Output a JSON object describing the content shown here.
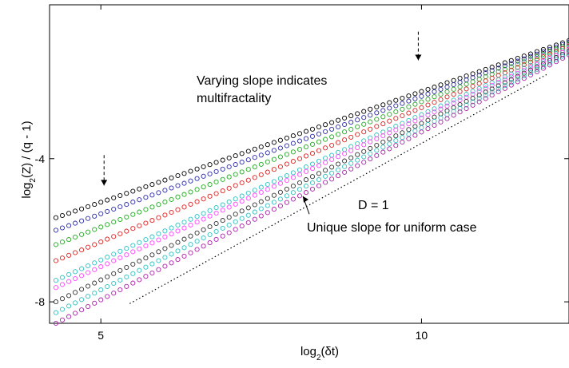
{
  "chart_data": {
    "type": "scatter",
    "xlabel": "log2(δt)",
    "ylabel": "log2(Z) / (q - 1)",
    "xlim": [
      4.2,
      12.3
    ],
    "ylim": [
      -8.6,
      0.3
    ],
    "xticks": [
      5,
      10
    ],
    "yticks": [
      -4,
      -8
    ],
    "grid": false,
    "legend": "none",
    "x_start": 4.3,
    "x_step": 0.1,
    "x_end": 12.3,
    "series": [
      {
        "color": "#000000",
        "points": [
          [
            4.3,
            -5.65
          ],
          [
            12.3,
            -0.7
          ]
        ]
      },
      {
        "color": "#2b2baa",
        "points": [
          [
            4.3,
            -6.0
          ],
          [
            12.3,
            -0.75
          ]
        ]
      },
      {
        "color": "#22aa22",
        "points": [
          [
            4.3,
            -6.4
          ],
          [
            12.3,
            -0.8
          ]
        ]
      },
      {
        "color": "#dd2222",
        "points": [
          [
            4.3,
            -6.85
          ],
          [
            12.3,
            -0.85
          ]
        ]
      },
      {
        "color": "#30c0c0",
        "points": [
          [
            4.3,
            -7.4
          ],
          [
            12.3,
            -0.9
          ]
        ]
      },
      {
        "color": "#ff44ff",
        "points": [
          [
            4.3,
            -7.6
          ],
          [
            12.3,
            -0.95
          ]
        ]
      },
      {
        "color": "#333333",
        "points": [
          [
            4.3,
            -8.0
          ],
          [
            12.3,
            -1.0
          ]
        ]
      },
      {
        "color": "#30c0c0",
        "points": [
          [
            4.3,
            -8.3
          ],
          [
            12.3,
            -1.05
          ]
        ]
      },
      {
        "color": "#aa22aa",
        "points": [
          [
            4.3,
            -8.6
          ],
          [
            12.3,
            -1.1
          ]
        ]
      }
    ],
    "reference_line": {
      "label": "D = 1",
      "points": [
        [
          5.45,
          -8.05
        ],
        [
          11.95,
          -1.65
        ]
      ]
    },
    "annotations": [
      {
        "text": "Varying slope indicates",
        "x": 9.3,
        "y": -2.0
      },
      {
        "text": "multifractality",
        "x": 9.3,
        "y": -2.45
      },
      {
        "text": "D = 1",
        "x": 8.2,
        "y": -5.8
      },
      {
        "text": "Unique slope for uniform case",
        "x": 9.85,
        "y": -6.75
      }
    ],
    "arrows": [
      {
        "x": 5.05,
        "y_from": -3.9,
        "y_to": -4.75,
        "dashed": true
      },
      {
        "x": 9.95,
        "y_from": -0.45,
        "y_to": -1.25,
        "dashed": true
      },
      {
        "x": 8.25,
        "y_from": -5.55,
        "y_to": -5.05,
        "dashed": false
      }
    ]
  }
}
